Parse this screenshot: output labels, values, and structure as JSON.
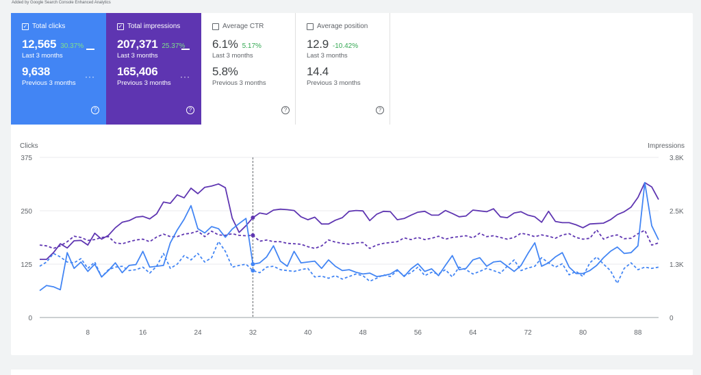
{
  "attribution": "Added by Google Search Console Enhanced Analytics",
  "cards": [
    {
      "label": "Total clicks",
      "value": "12,565",
      "change": "30.37%",
      "period": "Last 3 months",
      "prev_value": "9,638",
      "prev_period": "Previous 3 months",
      "checked": true
    },
    {
      "label": "Total impressions",
      "value": "207,371",
      "change": "25.37%",
      "period": "Last 3 months",
      "prev_value": "165,406",
      "prev_period": "Previous 3 months",
      "checked": true
    },
    {
      "label": "Average CTR",
      "value": "6.1%",
      "change": "5.17%",
      "period": "Last 3 months",
      "prev_value": "5.8%",
      "prev_period": "Previous 3 months",
      "checked": false
    },
    {
      "label": "Average position",
      "value": "12.9",
      "change": "-10.42%",
      "period": "Last 3 months",
      "prev_value": "14.4",
      "prev_period": "Previous 3 months",
      "checked": false
    }
  ],
  "icons": {
    "check": "✓",
    "help": "?",
    "more": "···"
  },
  "colors": {
    "clicks": "#4285f4",
    "impressions": "#5e35b1",
    "grid": "#e8eaed",
    "axis_text": "#5f6368"
  },
  "chart_data": {
    "type": "line",
    "ylabel_left": "Clicks",
    "ylabel_right": "Impressions",
    "left_ticks": [
      "0",
      "125",
      "250",
      "375"
    ],
    "right_ticks": [
      "0",
      "1.3K",
      "2.5K",
      "3.8K"
    ],
    "ylim_left": [
      0,
      375
    ],
    "ylim_right": [
      0,
      3800
    ],
    "xlim": [
      1,
      91
    ],
    "x_ticks": [
      8,
      16,
      24,
      32,
      40,
      48,
      56,
      64,
      72,
      80,
      88
    ],
    "crosshair_x": 32,
    "series": [
      {
        "name": "Impressions (last 3 months)",
        "axis": "right",
        "dashed": false,
        "color": "#5e35b1",
        "values": [
          1380,
          1380,
          1540,
          1750,
          1650,
          1820,
          1830,
          1720,
          2000,
          1860,
          1950,
          2130,
          2260,
          2300,
          2380,
          2400,
          2340,
          2460,
          2740,
          2710,
          2910,
          2840,
          3070,
          2940,
          3090,
          3120,
          3170,
          3080,
          2360,
          2020,
          2180,
          2370,
          2480,
          2450,
          2550,
          2570,
          2560,
          2540,
          2390,
          2320,
          2380,
          2220,
          2220,
          2310,
          2370,
          2520,
          2540,
          2530,
          2300,
          2450,
          2520,
          2510,
          2320,
          2350,
          2430,
          2500,
          2520,
          2430,
          2430,
          2540,
          2470,
          2390,
          2410,
          2550,
          2530,
          2510,
          2580,
          2390,
          2370,
          2480,
          2510,
          2430,
          2390,
          2260,
          2520,
          2280,
          2250,
          2250,
          2200,
          2130,
          2220,
          2230,
          2240,
          2320,
          2440,
          2510,
          2620,
          2850,
          3200,
          3100,
          2800
        ]
      },
      {
        "name": "Impressions (previous 3 months)",
        "axis": "right",
        "dashed": true,
        "color": "#5e35b1",
        "values": [
          1720,
          1700,
          1640,
          1700,
          1800,
          1930,
          1900,
          1830,
          1850,
          1900,
          1920,
          1770,
          1750,
          1800,
          1840,
          1860,
          1800,
          1910,
          1980,
          1920,
          1920,
          1980,
          2000,
          2050,
          1920,
          2050,
          1960,
          1950,
          1990,
          1950,
          1940,
          1950,
          1810,
          1840,
          1800,
          1800,
          1760,
          1750,
          1740,
          1680,
          1640,
          1700,
          1840,
          1790,
          1760,
          1740,
          1770,
          1780,
          1640,
          1720,
          1760,
          1780,
          1800,
          1890,
          1850,
          1900,
          1850,
          1880,
          1930,
          1860,
          1900,
          1920,
          1940,
          1890,
          2000,
          1920,
          1940,
          1900,
          1860,
          1900,
          2000,
          1970,
          1920,
          1960,
          1930,
          1880,
          1960,
          1990,
          1900,
          1860,
          1880,
          2080,
          1860,
          1930,
          1960,
          1870,
          1880,
          1990,
          2070,
          1720,
          1770
        ]
      },
      {
        "name": "Clicks (last 3 months)",
        "axis": "left",
        "dashed": false,
        "color": "#4285f4",
        "values": [
          63,
          75,
          72,
          65,
          152,
          115,
          130,
          108,
          125,
          95,
          110,
          128,
          105,
          122,
          124,
          155,
          118,
          120,
          122,
          175,
          205,
          230,
          262,
          208,
          198,
          213,
          208,
          188,
          207,
          220,
          232,
          125,
          128,
          142,
          168,
          132,
          120,
          155,
          128,
          130,
          132,
          115,
          135,
          120,
          110,
          112,
          106,
          102,
          104,
          96,
          98,
          102,
          112,
          96,
          114,
          126,
          108,
          114,
          98,
          122,
          145,
          112,
          115,
          135,
          140,
          120,
          130,
          132,
          120,
          108,
          122,
          150,
          175,
          120,
          128,
          142,
          152,
          118,
          103,
          103,
          110,
          122,
          140,
          155,
          165,
          150,
          152,
          168,
          316,
          215,
          182
        ]
      },
      {
        "name": "Clicks (previous 3 months)",
        "axis": "left",
        "dashed": true,
        "color": "#4285f4",
        "values": [
          120,
          130,
          150,
          142,
          130,
          128,
          138,
          115,
          130,
          95,
          112,
          118,
          120,
          110,
          112,
          118,
          104,
          120,
          150,
          115,
          125,
          145,
          135,
          150,
          130,
          140,
          178,
          155,
          118,
          122,
          125,
          110,
          105,
          118,
          120,
          112,
          110,
          108,
          112,
          115,
          95,
          97,
          92,
          98,
          90,
          96,
          102,
          98,
          85,
          92,
          100,
          96,
          110,
          98,
          105,
          118,
          98,
          106,
          102,
          112,
          95,
          118,
          112,
          102,
          108,
          115,
          110,
          104,
          120,
          135,
          110,
          116,
          120,
          140,
          128,
          118,
          126,
          100,
          108,
          96,
          128,
          142,
          125,
          110,
          80,
          115,
          128,
          112,
          118,
          115,
          118
        ]
      }
    ]
  }
}
